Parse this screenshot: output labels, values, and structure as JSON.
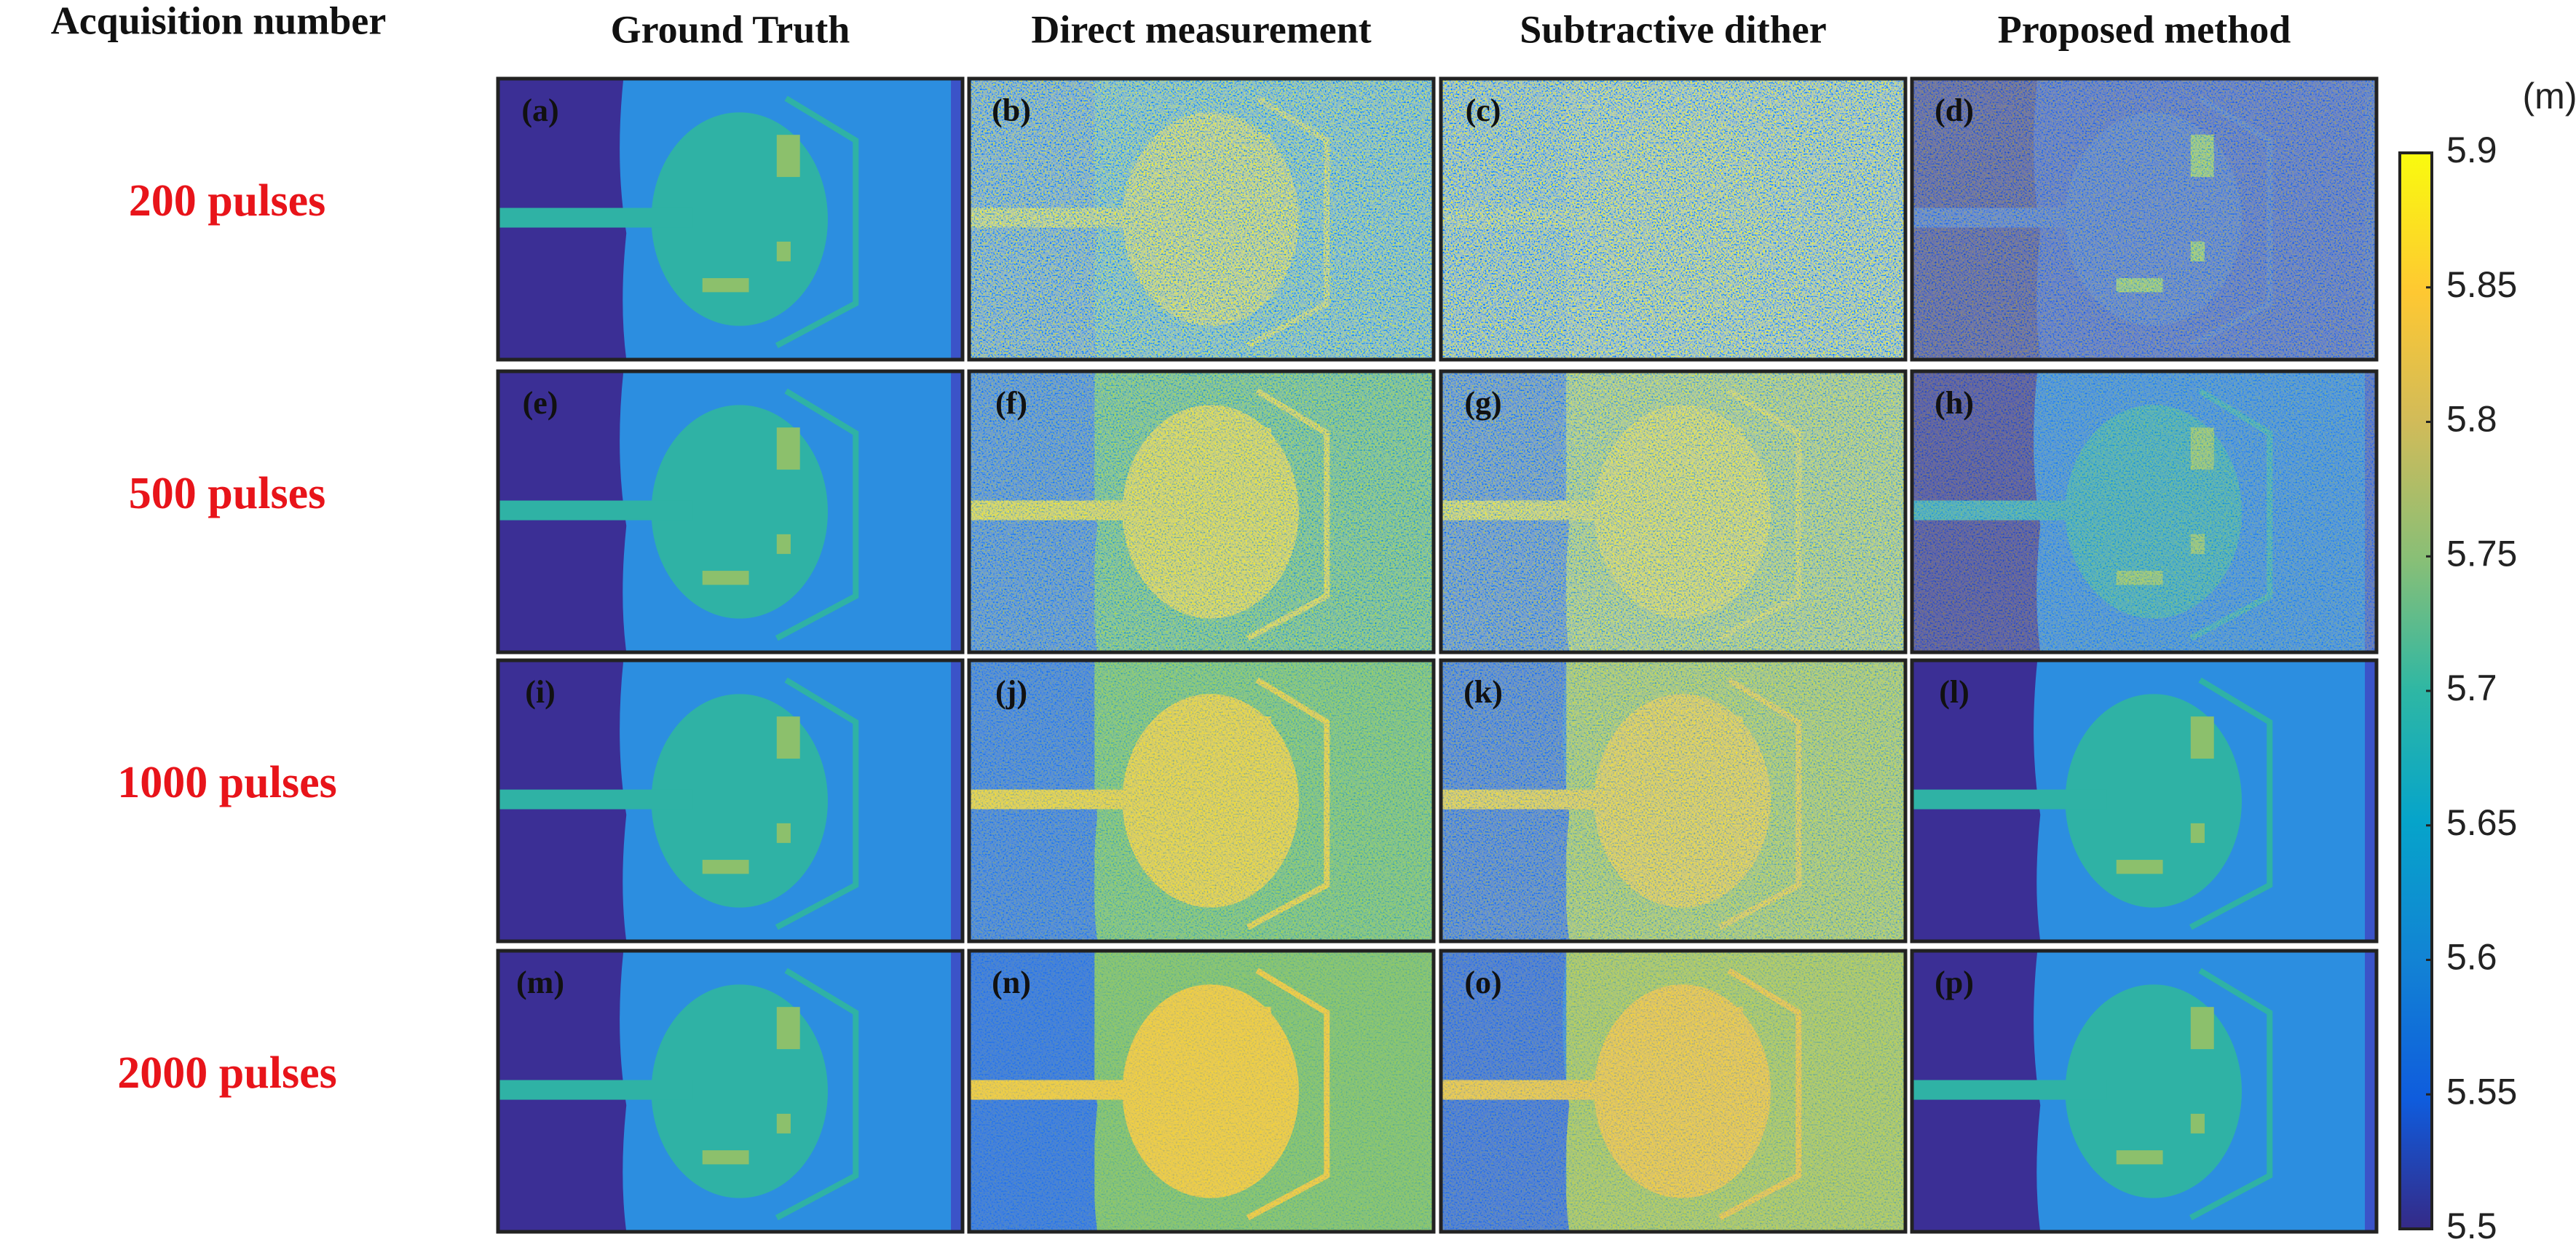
{
  "header": {
    "title": "Acquisition number",
    "columns": [
      "Ground Truth",
      "Direct measurement",
      "Subtractive dither",
      "Proposed method"
    ]
  },
  "rows": [
    "200 pulses",
    "500 pulses",
    "1000 pulses",
    "2000 pulses"
  ],
  "panels": [
    "(a)",
    "(b)",
    "(c)",
    "(d)",
    "(e)",
    "(f)",
    "(g)",
    "(h)",
    "(i)",
    "(j)",
    "(k)",
    "(l)",
    "(m)",
    "(n)",
    "(o)",
    "(p)"
  ],
  "colorbar": {
    "unit": "(m)",
    "lim": [
      5.5,
      5.9
    ],
    "ticks": [
      5.5,
      5.55,
      5.6,
      5.65,
      5.7,
      5.75,
      5.8,
      5.85,
      5.9
    ]
  }
}
